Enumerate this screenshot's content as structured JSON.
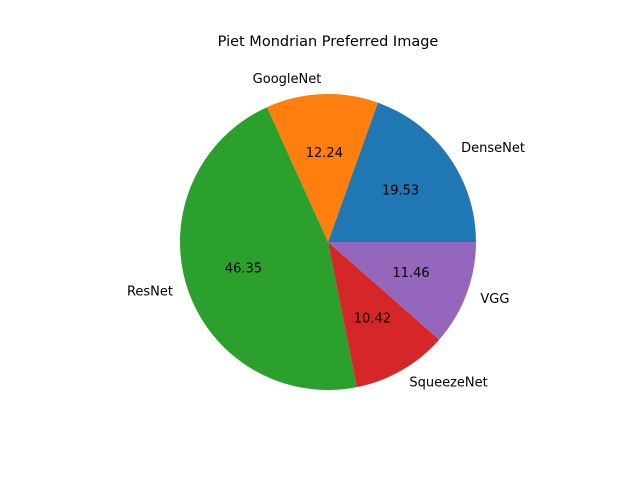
{
  "chart_data": {
    "type": "pie",
    "title": "Piet Mondrian Preferred Image",
    "slices": [
      {
        "label": "DenseNet",
        "value": 19.53,
        "value_label": "19.53",
        "color": "#1f77b4"
      },
      {
        "label": "GoogleNet",
        "value": 12.24,
        "value_label": "12.24",
        "color": "#ff7f0e"
      },
      {
        "label": "ResNet",
        "value": 46.35,
        "value_label": "46.35",
        "color": "#2ca02c"
      },
      {
        "label": "SqueezeNet",
        "value": 10.42,
        "value_label": "10.42",
        "color": "#d62728"
      },
      {
        "label": "VGG",
        "value": 11.46,
        "value_label": "11.46",
        "color": "#9467bd"
      }
    ],
    "start_angle_deg": 0,
    "direction": "counterclockwise",
    "legend": "none"
  }
}
